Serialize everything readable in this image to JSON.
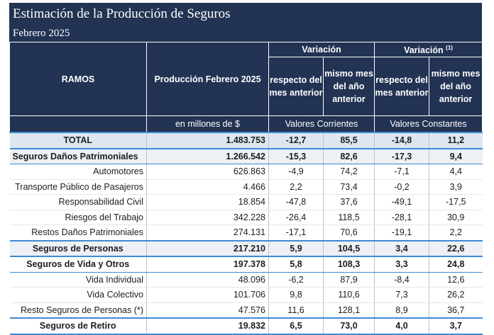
{
  "title": "Estimación de la Producción de Seguros",
  "subtitle": "Febrero 2025",
  "header": {
    "ramos": "RAMOS",
    "produccion": "Producción Febrero 2025",
    "variacion": "Variación",
    "variacion_const": "Variación",
    "variacion_const_note": "(1)",
    "respecto": "respecto del mes anterior",
    "mismo": "mismo mes del año anterior",
    "respecto_const": "respecto del mes anterior",
    "mismo_const": "mismo mes del año anterior",
    "unidades": "en millones de $",
    "valores_corrientes": "Valores Corrientes",
    "valores_constantes": "Valores Constantes"
  },
  "rows": [
    {
      "ramo": "TOTAL",
      "produccion": "1.483.753",
      "corr_mes": "-12,7",
      "corr_anio": "85,5",
      "const_mes": "-14,8",
      "const_anio": "11,2"
    },
    {
      "ramo": "Seguros Daños Patrimoniales",
      "produccion": "1.266.542",
      "corr_mes": "-15,3",
      "corr_anio": "82,6",
      "const_mes": "-17,3",
      "const_anio": "9,4"
    },
    {
      "ramo": "Automotores",
      "produccion": "626.863",
      "corr_mes": "-4,9",
      "corr_anio": "74,2",
      "const_mes": "-7,1",
      "const_anio": "4,4"
    },
    {
      "ramo": "Transporte Público de Pasajeros",
      "produccion": "4.466",
      "corr_mes": "2,2",
      "corr_anio": "73,4",
      "const_mes": "-0,2",
      "const_anio": "3,9"
    },
    {
      "ramo": "Responsabilidad Civil",
      "produccion": "18.854",
      "corr_mes": "-47,8",
      "corr_anio": "37,6",
      "const_mes": "-49,1",
      "const_anio": "-17,5"
    },
    {
      "ramo": "Riesgos del Trabajo",
      "produccion": "342.228",
      "corr_mes": "-26,4",
      "corr_anio": "118,5",
      "const_mes": "-28,1",
      "const_anio": "30,9"
    },
    {
      "ramo": "Restos Daños Patrimoniales",
      "produccion": "274.131",
      "corr_mes": "-17,1",
      "corr_anio": "70,6",
      "const_mes": "-19,1",
      "const_anio": "2,2"
    },
    {
      "ramo": "Seguros de Personas",
      "produccion": "217.210",
      "corr_mes": "5,9",
      "corr_anio": "104,5",
      "const_mes": "3,4",
      "const_anio": "22,6"
    },
    {
      "ramo": "Seguros de Vida y Otros",
      "produccion": "197.378",
      "corr_mes": "5,8",
      "corr_anio": "108,3",
      "const_mes": "3,3",
      "const_anio": "24,8"
    },
    {
      "ramo": "Vida Individual",
      "produccion": "48.096",
      "corr_mes": "-6,2",
      "corr_anio": "87,9",
      "const_mes": "-8,4",
      "const_anio": "12,6"
    },
    {
      "ramo": "Vida Colectivo",
      "produccion": "101.706",
      "corr_mes": "9,8",
      "corr_anio": "110,6",
      "const_mes": "7,3",
      "const_anio": "26,2"
    },
    {
      "ramo": "Resto Seguros de Personas (*)",
      "produccion": "47.576",
      "corr_mes": "11,6",
      "corr_anio": "128,1",
      "const_mes": "8,9",
      "const_anio": "36,7"
    },
    {
      "ramo": "Seguros de Retiro",
      "produccion": "19.832",
      "corr_mes": "6,5",
      "corr_anio": "73,0",
      "const_mes": "4,0",
      "const_anio": "3,7"
    }
  ]
}
